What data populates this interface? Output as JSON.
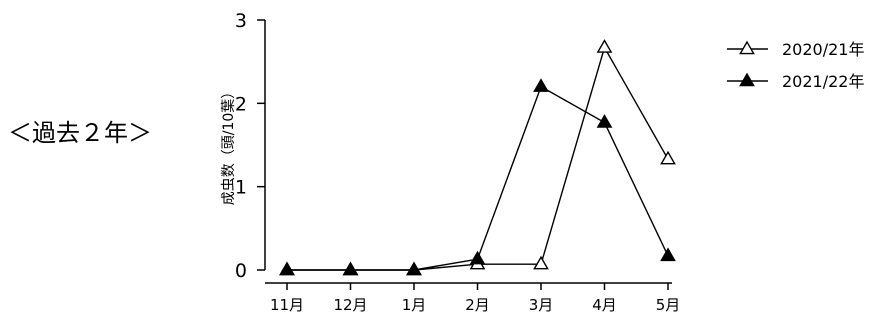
{
  "side_label": "＜過去２年＞",
  "chart_data": {
    "type": "line",
    "title": "",
    "xlabel": "",
    "ylabel": "成虫数（頭/10葉）",
    "ylim": [
      0,
      3
    ],
    "yticks": [
      "0",
      "1",
      "2",
      "3"
    ],
    "categories": [
      "11月",
      "12月",
      "1月",
      "2月",
      "3月",
      "4月",
      "5月"
    ],
    "grid": false,
    "legend": "top-right",
    "series": [
      {
        "name": "2020/21年",
        "marker": "open-triangle",
        "color": "#000000",
        "values": [
          0,
          0,
          0,
          0.07,
          0.07,
          2.67,
          1.33
        ]
      },
      {
        "name": "2021/22年",
        "marker": "filled-triangle",
        "color": "#000000",
        "values": [
          0,
          0,
          0,
          0.13,
          2.2,
          1.77,
          0.17
        ]
      }
    ]
  }
}
